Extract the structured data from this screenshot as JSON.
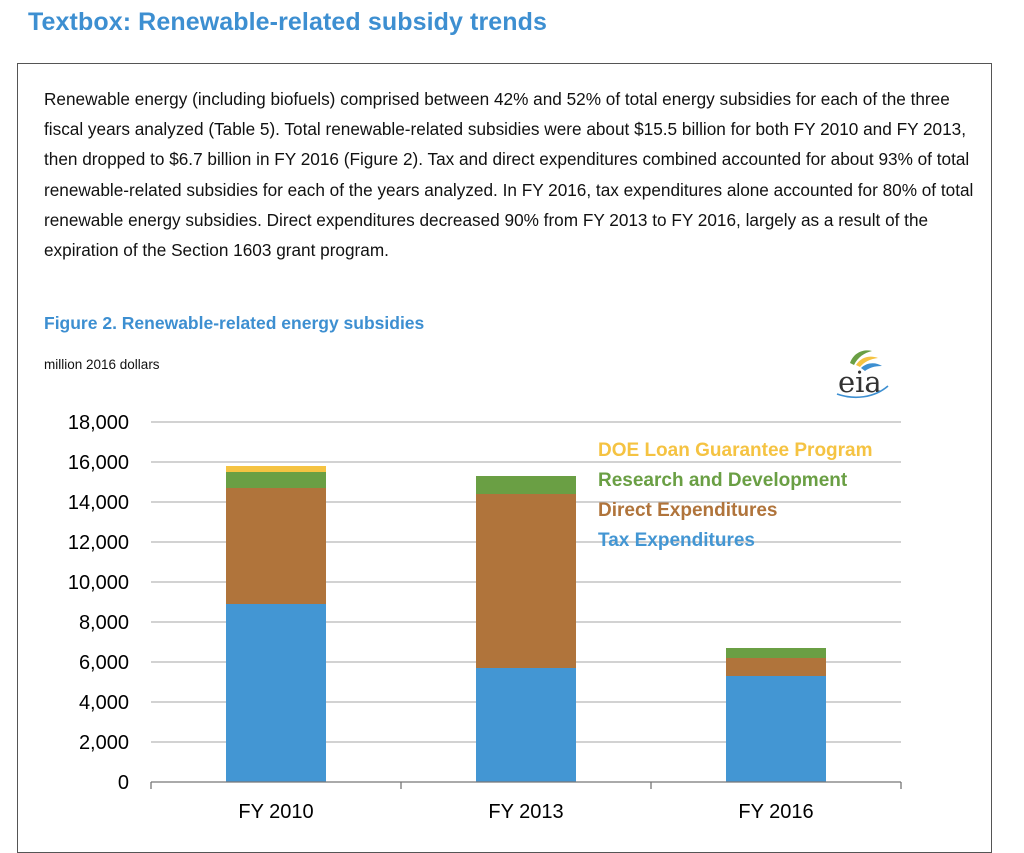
{
  "textbox": {
    "heading": "Textbox: Renewable-related subsidy trends",
    "paragraph": "Renewable energy (including biofuels) comprised between 42% and 52% of total energy subsidies for each of the three fiscal years analyzed (Table 5). Total renewable-related subsidies were about $15.5 billion for both FY 2010 and FY 2013, then dropped to $6.7 billion in FY 2016 (Figure 2). Tax and direct expenditures combined accounted for about 93% of total renewable-related subsidies for each of the years analyzed. In FY 2016, tax expenditures alone accounted for 80% of total renewable energy subsidies. Direct expenditures decreased 90% from FY 2013 to FY 2016, largely as a result of the expiration of the Section 1603 grant program.",
    "figure_title": "Figure 2. Renewable-related energy subsidies",
    "units_label": "million 2016 dollars",
    "logo_text": "eia"
  },
  "colors": {
    "heading": "#3d8fd1",
    "tax": "#4396d3",
    "direct": "#b0743b",
    "rnd": "#6a9f44",
    "doe": "#f5c342"
  },
  "chart_data": {
    "type": "bar",
    "stacked": true,
    "title": "Figure 2. Renewable-related energy subsidies",
    "ylabel": "million 2016 dollars",
    "categories": [
      "FY 2010",
      "FY 2013",
      "FY 2016"
    ],
    "ylim": [
      0,
      18000
    ],
    "yticks": [
      0,
      2000,
      4000,
      6000,
      8000,
      10000,
      12000,
      14000,
      16000,
      18000
    ],
    "ytick_labels": [
      "0",
      "2,000",
      "4,000",
      "6,000",
      "8,000",
      "10,000",
      "12,000",
      "14,000",
      "16,000",
      "18,000"
    ],
    "grid": true,
    "legend_position": "top-right",
    "series": [
      {
        "name": "Tax Expenditures",
        "color": "#4396d3",
        "values": [
          8900,
          5700,
          5300
        ]
      },
      {
        "name": "Direct Expenditures",
        "color": "#b0743b",
        "values": [
          5800,
          8700,
          900
        ]
      },
      {
        "name": "Research and Development",
        "color": "#6a9f44",
        "values": [
          800,
          900,
          500
        ]
      },
      {
        "name": "DOE Loan Guarantee Program",
        "color": "#f5c342",
        "values": [
          300,
          0,
          0
        ]
      }
    ],
    "legend_order": [
      "DOE Loan Guarantee Program",
      "Research and Development",
      "Direct Expenditures",
      "Tax Expenditures"
    ]
  }
}
